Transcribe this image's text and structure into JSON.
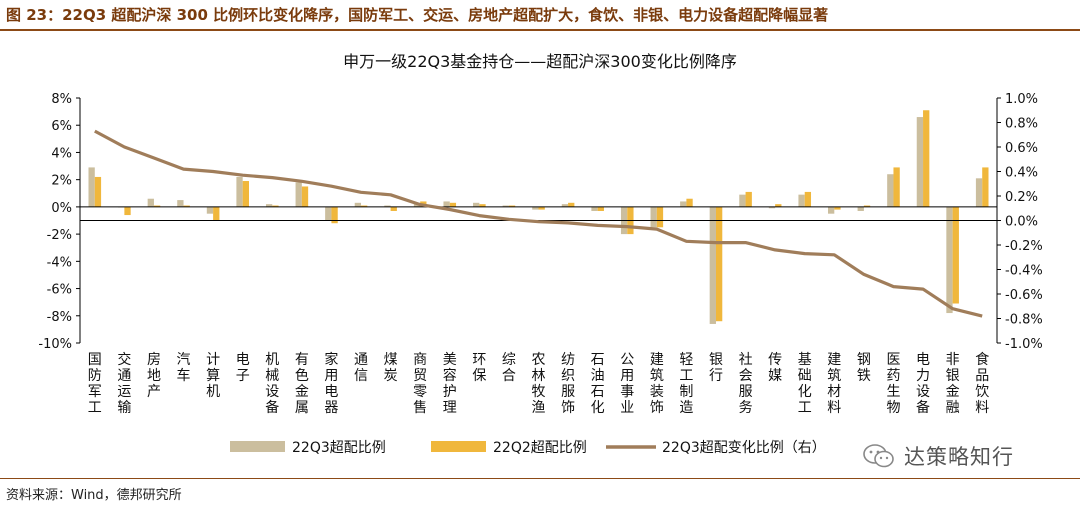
{
  "figure": {
    "title": "图 23：22Q3 超配沪深 300 比例环比变化降序，国防军工、交运、房地产超配扩大，食饮、非银、电力设备超配降幅显著",
    "source": "资料来源：Wind，德邦研究所",
    "watermark": "达策略知行"
  },
  "colors": {
    "q3_bar": "#cbbe9e",
    "q2_bar": "#f0b73c",
    "line": "#a07d5a",
    "axis": "#000000",
    "title_brown": "#7a3b0c"
  },
  "chart_data": {
    "type": "bar",
    "title": "申万一级22Q3基金持仓——超配沪深300变化比例降序",
    "categories": [
      "国防军工",
      "交通运输",
      "房地产",
      "汽车",
      "计算机",
      "电子",
      "机械设备",
      "有色金属",
      "家用电器",
      "通信",
      "煤炭",
      "商贸零售",
      "美容护理",
      "环保",
      "综合",
      "农林牧渔",
      "纺织服饰",
      "石油石化",
      "公用事业",
      "建筑装饰",
      "轻工制造",
      "银行",
      "社会服务",
      "传媒",
      "基础化工",
      "建筑材料",
      "钢铁",
      "医药生物",
      "电力设备",
      "非银金融",
      "食品饮料"
    ],
    "category_labels": [
      "国防军工",
      "交通运输",
      "房地产",
      "汽车",
      "计算机",
      "电子",
      "机械设备",
      "有色金属",
      "家用电器",
      "通信",
      "煤炭",
      "商贸零售",
      "美容护理",
      "环保",
      "综合",
      "农林牧渔",
      "纺织服饰",
      "石油石化",
      "公用事业",
      "建筑装饰",
      "轻工制造",
      "银行",
      "社会服务",
      "传媒",
      "基础化工",
      "建筑材料",
      "钢铁",
      "医药生物",
      "电力设备",
      "非银金融",
      "食品饮料"
    ],
    "series": [
      {
        "name": "22Q3超配比例",
        "type": "bar",
        "axis": "left",
        "values": [
          2.9,
          0.0,
          0.6,
          0.5,
          -0.5,
          2.2,
          0.2,
          1.8,
          -1.0,
          0.3,
          0.1,
          0.3,
          0.4,
          0.3,
          0.1,
          -0.2,
          0.2,
          -0.3,
          -2.0,
          -1.5,
          0.4,
          -8.6,
          0.9,
          -0.1,
          0.9,
          -0.5,
          -0.3,
          2.4,
          6.6,
          -7.8,
          2.1
        ]
      },
      {
        "name": "22Q2超配比例",
        "type": "bar",
        "axis": "left",
        "values": [
          2.2,
          -0.6,
          0.1,
          0.1,
          -1.0,
          1.9,
          0.1,
          1.5,
          -1.2,
          0.1,
          -0.3,
          0.4,
          0.3,
          0.2,
          0.1,
          -0.2,
          0.3,
          -0.3,
          -2.0,
          -1.5,
          0.6,
          -8.4,
          1.1,
          0.2,
          1.1,
          -0.2,
          0.1,
          2.9,
          7.1,
          -7.1,
          2.9
        ]
      },
      {
        "name": "22Q3超配变化比例（右）",
        "type": "line",
        "axis": "right",
        "values": [
          0.73,
          0.6,
          0.51,
          0.42,
          0.4,
          0.37,
          0.35,
          0.32,
          0.28,
          0.23,
          0.21,
          0.13,
          0.09,
          0.04,
          0.01,
          -0.01,
          -0.02,
          -0.04,
          -0.05,
          -0.07,
          -0.17,
          -0.18,
          -0.18,
          -0.24,
          -0.27,
          -0.28,
          -0.44,
          -0.54,
          -0.56,
          -0.72,
          -0.78
        ]
      }
    ],
    "left_axis": {
      "ylim": [
        -10,
        8
      ],
      "ticks": [
        -10,
        -8,
        -6,
        -4,
        -2,
        0,
        2,
        4,
        6,
        8
      ],
      "tick_labels": [
        "-10%",
        "-8%",
        "-6%",
        "-4%",
        "-2%",
        "0%",
        "2%",
        "4%",
        "6%",
        "8%"
      ]
    },
    "right_axis": {
      "ylim": [
        -1.0,
        1.0
      ],
      "ticks": [
        -1.0,
        -0.8,
        -0.6,
        -0.4,
        -0.2,
        0.0,
        0.2,
        0.4,
        0.6,
        0.8,
        1.0
      ],
      "tick_labels": [
        "-1.0%",
        "-0.8%",
        "-0.6%",
        "-0.4%",
        "-0.2%",
        "0.0%",
        "0.2%",
        "0.4%",
        "0.6%",
        "0.8%",
        "1.0%"
      ]
    },
    "legend": {
      "position": "bottom",
      "entries": [
        "22Q3超配比例",
        "22Q2超配比例",
        "22Q3超配变化比例（右）"
      ]
    },
    "grid": false
  }
}
